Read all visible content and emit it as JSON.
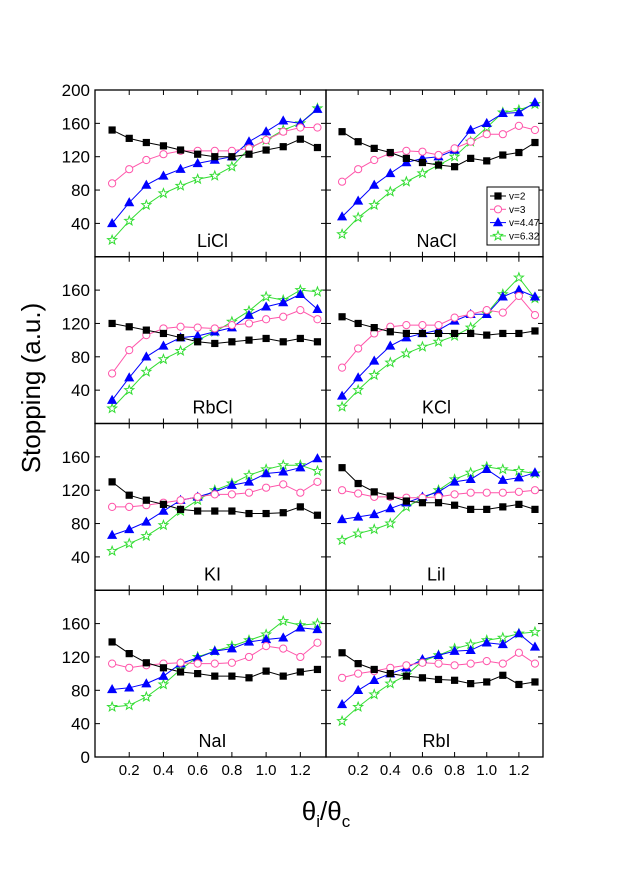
{
  "figure": {
    "ylabel": "Stopping (a.u.)",
    "xlabel_main": "θ",
    "xlabel_sub1": "i",
    "xlabel_slash": "/θ",
    "xlabel_sub2": "c"
  },
  "chart_data": {
    "type": "line",
    "grid": false,
    "layout": "4 rows x 2 columns, shared axes",
    "legend_panel": "NaCl",
    "legend_position": "right",
    "xlim": [
      0.0,
      1.35
    ],
    "ylim": [
      0,
      200
    ],
    "xticks": [
      0.2,
      0.4,
      0.6,
      0.8,
      1.0,
      1.2
    ],
    "xtick_labels": [
      "0.2",
      "0.4",
      "0.6",
      "0.8",
      "1.0",
      "1.2"
    ],
    "yticks": [
      0,
      40,
      80,
      120,
      160,
      200
    ],
    "ytick_labels": [
      "0",
      "40",
      "80",
      "120",
      "160",
      "200"
    ],
    "x": [
      0.1,
      0.2,
      0.3,
      0.4,
      0.5,
      0.6,
      0.7,
      0.8,
      0.9,
      1.0,
      1.1,
      1.2,
      1.3
    ],
    "series_styles": [
      {
        "name": "v=2",
        "color": "#000000",
        "marker": "square",
        "fill": true
      },
      {
        "name": "v=3",
        "color": "#ff55aa",
        "marker": "circle",
        "fill": false
      },
      {
        "name": "v=4.47",
        "color": "#0000ff",
        "marker": "triangle-up",
        "fill": true
      },
      {
        "name": "v=6.32",
        "color": "#33dd33",
        "marker": "star",
        "fill": false
      }
    ],
    "panels": [
      {
        "label": "LiCl",
        "series": [
          [
            152,
            142,
            137,
            133,
            128,
            123,
            120,
            120,
            123,
            128,
            132,
            141,
            131
          ],
          [
            88,
            105,
            116,
            123,
            127,
            127,
            127,
            127,
            130,
            140,
            150,
            155,
            155
          ],
          [
            40,
            65,
            86,
            97,
            105,
            112,
            116,
            120,
            138,
            150,
            163,
            160,
            177
          ],
          [
            20,
            43,
            62,
            76,
            85,
            93,
            97,
            108,
            130,
            140,
            152,
            160,
            178
          ]
        ]
      },
      {
        "label": "NaCl",
        "series": [
          [
            150,
            138,
            130,
            125,
            118,
            113,
            110,
            108,
            118,
            115,
            122,
            125,
            137
          ],
          [
            90,
            105,
            116,
            124,
            127,
            126,
            122,
            130,
            138,
            147,
            147,
            157,
            152
          ],
          [
            48,
            67,
            86,
            100,
            113,
            118,
            120,
            128,
            152,
            160,
            172,
            173,
            185
          ],
          [
            27,
            47,
            62,
            78,
            90,
            100,
            110,
            120,
            138,
            155,
            173,
            176,
            183
          ]
        ]
      },
      {
        "label": "RbCl",
        "series": [
          [
            120,
            116,
            112,
            108,
            103,
            98,
            96,
            98,
            100,
            102,
            98,
            102,
            98
          ],
          [
            60,
            88,
            106,
            114,
            116,
            115,
            114,
            118,
            120,
            125,
            128,
            136,
            125
          ],
          [
            28,
            55,
            80,
            93,
            103,
            105,
            110,
            115,
            130,
            140,
            145,
            155,
            137
          ],
          [
            18,
            40,
            62,
            77,
            87,
            100,
            110,
            122,
            135,
            152,
            148,
            160,
            158
          ]
        ]
      },
      {
        "label": "KCl",
        "series": [
          [
            128,
            120,
            115,
            110,
            108,
            108,
            108,
            108,
            108,
            106,
            108,
            108,
            111
          ],
          [
            67,
            90,
            108,
            116,
            118,
            118,
            118,
            127,
            131,
            136,
            133,
            153,
            130
          ],
          [
            33,
            55,
            75,
            93,
            103,
            108,
            112,
            123,
            131,
            131,
            152,
            160,
            152
          ],
          [
            20,
            40,
            58,
            73,
            84,
            92,
            98,
            105,
            115,
            132,
            155,
            175,
            150
          ]
        ]
      },
      {
        "label": "KI",
        "series": [
          [
            130,
            114,
            108,
            103,
            97,
            95,
            95,
            95,
            92,
            92,
            93,
            100,
            90
          ],
          [
            100,
            100,
            102,
            105,
            108,
            112,
            115,
            115,
            117,
            123,
            127,
            117,
            130
          ],
          [
            66,
            73,
            82,
            95,
            108,
            112,
            118,
            126,
            130,
            140,
            142,
            147,
            158
          ],
          [
            47,
            56,
            65,
            78,
            95,
            108,
            120,
            128,
            138,
            145,
            150,
            150,
            143
          ]
        ]
      },
      {
        "label": "LiI",
        "series": [
          [
            147,
            128,
            118,
            113,
            107,
            105,
            105,
            102,
            97,
            97,
            100,
            103,
            97
          ],
          [
            120,
            116,
            112,
            112,
            111,
            111,
            112,
            115,
            117,
            117,
            117,
            118,
            120
          ],
          [
            85,
            88,
            91,
            98,
            105,
            112,
            118,
            130,
            133,
            145,
            132,
            135,
            141
          ],
          [
            60,
            68,
            73,
            80,
            100,
            110,
            120,
            133,
            141,
            148,
            145,
            143,
            140
          ]
        ]
      },
      {
        "label": "NaI",
        "series": [
          [
            138,
            124,
            113,
            107,
            102,
            100,
            97,
            97,
            95,
            103,
            97,
            102,
            105
          ],
          [
            112,
            107,
            110,
            112,
            113,
            112,
            112,
            113,
            120,
            133,
            130,
            120,
            137
          ],
          [
            81,
            83,
            88,
            97,
            112,
            119,
            127,
            130,
            138,
            141,
            143,
            155,
            153
          ],
          [
            60,
            62,
            72,
            87,
            105,
            120,
            127,
            133,
            140,
            147,
            163,
            158,
            160
          ]
        ]
      },
      {
        "label": "RbI",
        "series": [
          [
            125,
            112,
            105,
            100,
            97,
            95,
            93,
            92,
            88,
            90,
            98,
            87,
            90
          ],
          [
            95,
            100,
            103,
            107,
            110,
            113,
            112,
            110,
            112,
            115,
            112,
            125,
            112
          ],
          [
            63,
            80,
            92,
            100,
            107,
            117,
            122,
            127,
            128,
            137,
            135,
            148,
            132
          ],
          [
            43,
            60,
            75,
            88,
            98,
            115,
            122,
            130,
            135,
            140,
            143,
            148,
            150
          ]
        ]
      }
    ]
  }
}
